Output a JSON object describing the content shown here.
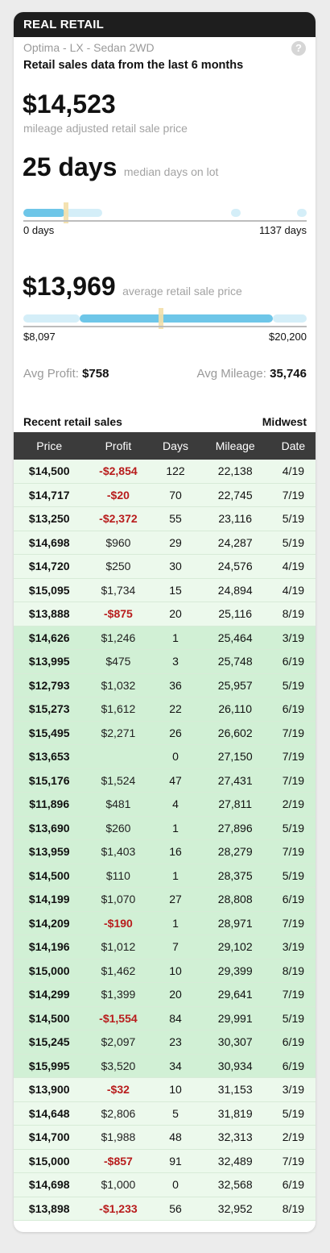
{
  "header": {
    "title": "REAL RETAIL"
  },
  "vehicle": {
    "name": "Optima - LX - Sedan 2WD",
    "help_icon": "?"
  },
  "description": "Retail sales data from the last 6 months",
  "adjusted_price": {
    "value": "$14,523",
    "label": "mileage adjusted retail sale price"
  },
  "days_on_lot": {
    "value": "25 days",
    "label": "median days on lot",
    "min_label": "0 days",
    "max_label": "1137 days",
    "range": [
      0,
      1137
    ],
    "median": 25
  },
  "avg_price": {
    "value": "$13,969",
    "label": "average retail sale price",
    "min_label": "$8,097",
    "max_label": "$20,200",
    "range": [
      8097,
      20200
    ],
    "average": 13969
  },
  "stats": {
    "profit_label": "Avg Profit:",
    "profit_value": "$758",
    "mileage_label": "Avg Mileage:",
    "mileage_value": "35,746"
  },
  "recent": {
    "title": "Recent retail sales",
    "region": "Midwest"
  },
  "table": {
    "columns": [
      "Price",
      "Profit",
      "Days",
      "Mileage",
      "Date"
    ],
    "rows": [
      {
        "price": "$14,500",
        "profit": "-$2,854",
        "days": "122",
        "mileage": "22,138",
        "date": "4/19",
        "shade": "light"
      },
      {
        "price": "$14,717",
        "profit": "-$20",
        "days": "70",
        "mileage": "22,745",
        "date": "7/19",
        "shade": "light"
      },
      {
        "price": "$13,250",
        "profit": "-$2,372",
        "days": "55",
        "mileage": "23,116",
        "date": "5/19",
        "shade": "light"
      },
      {
        "price": "$14,698",
        "profit": "$960",
        "days": "29",
        "mileage": "24,287",
        "date": "5/19",
        "shade": "light"
      },
      {
        "price": "$14,720",
        "profit": "$250",
        "days": "30",
        "mileage": "24,576",
        "date": "4/19",
        "shade": "light"
      },
      {
        "price": "$15,095",
        "profit": "$1,734",
        "days": "15",
        "mileage": "24,894",
        "date": "4/19",
        "shade": "light"
      },
      {
        "price": "$13,888",
        "profit": "-$875",
        "days": "20",
        "mileage": "25,116",
        "date": "8/19",
        "shade": "light"
      },
      {
        "price": "$14,626",
        "profit": "$1,246",
        "days": "1",
        "mileage": "25,464",
        "date": "3/19",
        "shade": "dark"
      },
      {
        "price": "$13,995",
        "profit": "$475",
        "days": "3",
        "mileage": "25,748",
        "date": "6/19",
        "shade": "dark"
      },
      {
        "price": "$12,793",
        "profit": "$1,032",
        "days": "36",
        "mileage": "25,957",
        "date": "5/19",
        "shade": "dark"
      },
      {
        "price": "$15,273",
        "profit": "$1,612",
        "days": "22",
        "mileage": "26,110",
        "date": "6/19",
        "shade": "dark"
      },
      {
        "price": "$15,495",
        "profit": "$2,271",
        "days": "26",
        "mileage": "26,602",
        "date": "7/19",
        "shade": "dark"
      },
      {
        "price": "$13,653",
        "profit": "",
        "days": "0",
        "mileage": "27,150",
        "date": "7/19",
        "shade": "dark"
      },
      {
        "price": "$15,176",
        "profit": "$1,524",
        "days": "47",
        "mileage": "27,431",
        "date": "7/19",
        "shade": "dark"
      },
      {
        "price": "$11,896",
        "profit": "$481",
        "days": "4",
        "mileage": "27,811",
        "date": "2/19",
        "shade": "dark"
      },
      {
        "price": "$13,690",
        "profit": "$260",
        "days": "1",
        "mileage": "27,896",
        "date": "5/19",
        "shade": "dark"
      },
      {
        "price": "$13,959",
        "profit": "$1,403",
        "days": "16",
        "mileage": "28,279",
        "date": "7/19",
        "shade": "dark"
      },
      {
        "price": "$14,500",
        "profit": "$110",
        "days": "1",
        "mileage": "28,375",
        "date": "5/19",
        "shade": "dark"
      },
      {
        "price": "$14,199",
        "profit": "$1,070",
        "days": "27",
        "mileage": "28,808",
        "date": "6/19",
        "shade": "dark"
      },
      {
        "price": "$14,209",
        "profit": "-$190",
        "days": "1",
        "mileage": "28,971",
        "date": "7/19",
        "shade": "dark"
      },
      {
        "price": "$14,196",
        "profit": "$1,012",
        "days": "7",
        "mileage": "29,102",
        "date": "3/19",
        "shade": "dark"
      },
      {
        "price": "$15,000",
        "profit": "$1,462",
        "days": "10",
        "mileage": "29,399",
        "date": "8/19",
        "shade": "dark"
      },
      {
        "price": "$14,299",
        "profit": "$1,399",
        "days": "20",
        "mileage": "29,641",
        "date": "7/19",
        "shade": "dark"
      },
      {
        "price": "$14,500",
        "profit": "-$1,554",
        "days": "84",
        "mileage": "29,991",
        "date": "5/19",
        "shade": "dark"
      },
      {
        "price": "$15,245",
        "profit": "$2,097",
        "days": "23",
        "mileage": "30,307",
        "date": "6/19",
        "shade": "dark"
      },
      {
        "price": "$15,995",
        "profit": "$3,520",
        "days": "34",
        "mileage": "30,934",
        "date": "6/19",
        "shade": "dark"
      },
      {
        "price": "$13,900",
        "profit": "-$32",
        "days": "10",
        "mileage": "31,153",
        "date": "3/19",
        "shade": "light"
      },
      {
        "price": "$14,648",
        "profit": "$2,806",
        "days": "5",
        "mileage": "31,819",
        "date": "5/19",
        "shade": "light"
      },
      {
        "price": "$14,700",
        "profit": "$1,988",
        "days": "48",
        "mileage": "32,313",
        "date": "2/19",
        "shade": "light"
      },
      {
        "price": "$15,000",
        "profit": "-$857",
        "days": "91",
        "mileage": "32,489",
        "date": "7/19",
        "shade": "light"
      },
      {
        "price": "$14,698",
        "profit": "$1,000",
        "days": "0",
        "mileage": "32,568",
        "date": "6/19",
        "shade": "light"
      },
      {
        "price": "$13,898",
        "profit": "-$1,233",
        "days": "56",
        "mileage": "32,952",
        "date": "8/19",
        "shade": "light"
      }
    ]
  },
  "colors": {
    "header_bg": "#1e1e1e",
    "negative": "#b81c1c",
    "row_light": "#ecf9ec",
    "row_dark": "#d1f0d5",
    "strip_blue": "#6ec6e8",
    "marker": "#f3dfa8"
  }
}
